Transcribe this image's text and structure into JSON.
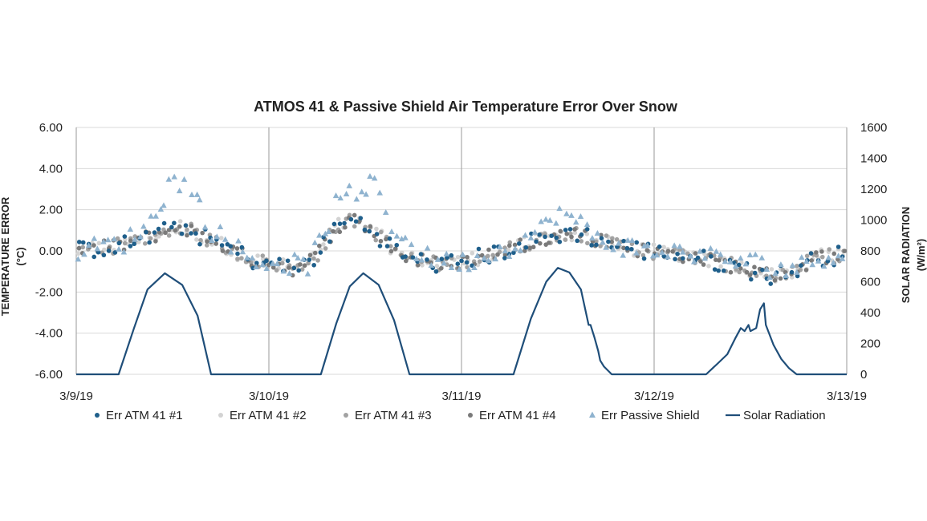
{
  "chart_data": {
    "type": "scatter",
    "title": "ATMOS 41 & Passive Shield Air Temperature Error Over Snow",
    "ylabel_left_line1": "TEMPERATURE ERROR",
    "ylabel_left_line2": "(°C)",
    "ylabel_right_line1": "SOLAR RADIATION",
    "ylabel_right_line2": "(W/m²)",
    "x_ticks": [
      "3/9/19",
      "3/10/19",
      "3/11/19",
      "3/12/19",
      "3/13/19"
    ],
    "xlim_days": [
      0,
      4
    ],
    "y_left_ticks": [
      "6.00",
      "4.00",
      "2.00",
      "0.00",
      "-2.00",
      "-4.00",
      "-6.00"
    ],
    "ylim_left": [
      -6,
      6
    ],
    "y_right_ticks": [
      "1600",
      "1400",
      "1200",
      "1000",
      "800",
      "600",
      "400",
      "200",
      "0"
    ],
    "ylim_right": [
      0,
      1600
    ],
    "grid": "vertical",
    "legend_position": "bottom",
    "colors": {
      "atm1": "#1f5f8b",
      "atm2": "#d3d3d3",
      "atm3": "#a2a2a2",
      "atm4": "#7a7a7a",
      "passive": "#8fb3cf",
      "solar": "#1f4e79"
    },
    "legend": [
      {
        "label": "Err ATM 41 #1",
        "marker": "circle",
        "color": "#1f5f8b"
      },
      {
        "label": "Err ATM 41 #2",
        "marker": "circle",
        "color": "#d3d3d3"
      },
      {
        "label": "Err ATM 41 #3",
        "marker": "circle",
        "color": "#a2a2a2"
      },
      {
        "label": "Err ATM 41 #4",
        "marker": "circle",
        "color": "#7a7a7a"
      },
      {
        "label": "Err Passive Shield",
        "marker": "triangle",
        "color": "#8fb3cf"
      },
      {
        "label": "Solar Radiation",
        "marker": "line",
        "color": "#1f4e79"
      }
    ],
    "baseline": [
      [
        0.0,
        0.0
      ],
      [
        0.25,
        0.3
      ],
      [
        0.45,
        0.9
      ],
      [
        0.55,
        1.2
      ],
      [
        0.65,
        0.7
      ],
      [
        0.78,
        0.2
      ],
      [
        0.9,
        -0.4
      ],
      [
        1.0,
        -0.6
      ],
      [
        1.15,
        -0.9
      ],
      [
        1.25,
        -0.2
      ],
      [
        1.35,
        1.2
      ],
      [
        1.45,
        1.5
      ],
      [
        1.55,
        0.9
      ],
      [
        1.7,
        -0.3
      ],
      [
        1.9,
        -0.7
      ],
      [
        2.1,
        -0.3
      ],
      [
        2.25,
        0.1
      ],
      [
        2.45,
        0.7
      ],
      [
        2.6,
        0.9
      ],
      [
        2.75,
        0.4
      ],
      [
        2.95,
        0.0
      ],
      [
        3.15,
        -0.2
      ],
      [
        3.3,
        -0.5
      ],
      [
        3.45,
        -0.8
      ],
      [
        3.6,
        -1.2
      ],
      [
        3.72,
        -1.0
      ],
      [
        3.85,
        -0.3
      ],
      [
        4.0,
        -0.2
      ]
    ],
    "passive_baseline": [
      [
        0.0,
        0.0
      ],
      [
        0.25,
        0.4
      ],
      [
        0.4,
        1.5
      ],
      [
        0.5,
        3.6
      ],
      [
        0.6,
        3.0
      ],
      [
        0.7,
        1.0
      ],
      [
        0.82,
        0.3
      ],
      [
        0.9,
        -0.4
      ],
      [
        1.0,
        -0.6
      ],
      [
        1.2,
        -0.7
      ],
      [
        1.3,
        1.0
      ],
      [
        1.38,
        3.2
      ],
      [
        1.45,
        2.2
      ],
      [
        1.55,
        3.5
      ],
      [
        1.65,
        1.0
      ],
      [
        1.8,
        -0.3
      ],
      [
        2.0,
        -0.6
      ],
      [
        2.2,
        0.0
      ],
      [
        2.4,
        0.9
      ],
      [
        2.5,
        1.9
      ],
      [
        2.6,
        1.4
      ],
      [
        2.72,
        0.5
      ],
      [
        2.95,
        0.0
      ],
      [
        3.2,
        -0.1
      ],
      [
        3.4,
        -0.5
      ],
      [
        3.55,
        -0.6
      ],
      [
        3.62,
        -0.9
      ],
      [
        3.75,
        -0.8
      ],
      [
        3.9,
        -0.2
      ],
      [
        4.0,
        -0.1
      ]
    ],
    "scatter_spread": 0.45,
    "points_per_series": 150,
    "solar_radiation": [
      [
        0.0,
        0
      ],
      [
        0.22,
        0
      ],
      [
        0.3,
        300
      ],
      [
        0.37,
        550
      ],
      [
        0.46,
        655
      ],
      [
        0.55,
        580
      ],
      [
        0.63,
        380
      ],
      [
        0.7,
        0
      ],
      [
        1.0,
        0
      ],
      [
        1.27,
        0
      ],
      [
        1.35,
        330
      ],
      [
        1.42,
        570
      ],
      [
        1.49,
        655
      ],
      [
        1.57,
        580
      ],
      [
        1.65,
        350
      ],
      [
        1.73,
        0
      ],
      [
        2.0,
        0
      ],
      [
        2.27,
        0
      ],
      [
        2.36,
        360
      ],
      [
        2.44,
        600
      ],
      [
        2.5,
        690
      ],
      [
        2.56,
        660
      ],
      [
        2.62,
        550
      ],
      [
        2.66,
        320
      ],
      [
        2.67,
        320
      ],
      [
        2.69,
        240
      ],
      [
        2.71,
        150
      ],
      [
        2.72,
        90
      ],
      [
        2.74,
        50
      ],
      [
        2.78,
        0
      ],
      [
        3.0,
        0
      ],
      [
        3.27,
        0
      ],
      [
        3.33,
        70
      ],
      [
        3.38,
        130
      ],
      [
        3.42,
        230
      ],
      [
        3.45,
        300
      ],
      [
        3.47,
        280
      ],
      [
        3.49,
        320
      ],
      [
        3.5,
        280
      ],
      [
        3.53,
        300
      ],
      [
        3.55,
        420
      ],
      [
        3.57,
        460
      ],
      [
        3.58,
        320
      ],
      [
        3.62,
        190
      ],
      [
        3.66,
        100
      ],
      [
        3.7,
        40
      ],
      [
        3.74,
        0
      ],
      [
        4.0,
        0
      ]
    ]
  }
}
